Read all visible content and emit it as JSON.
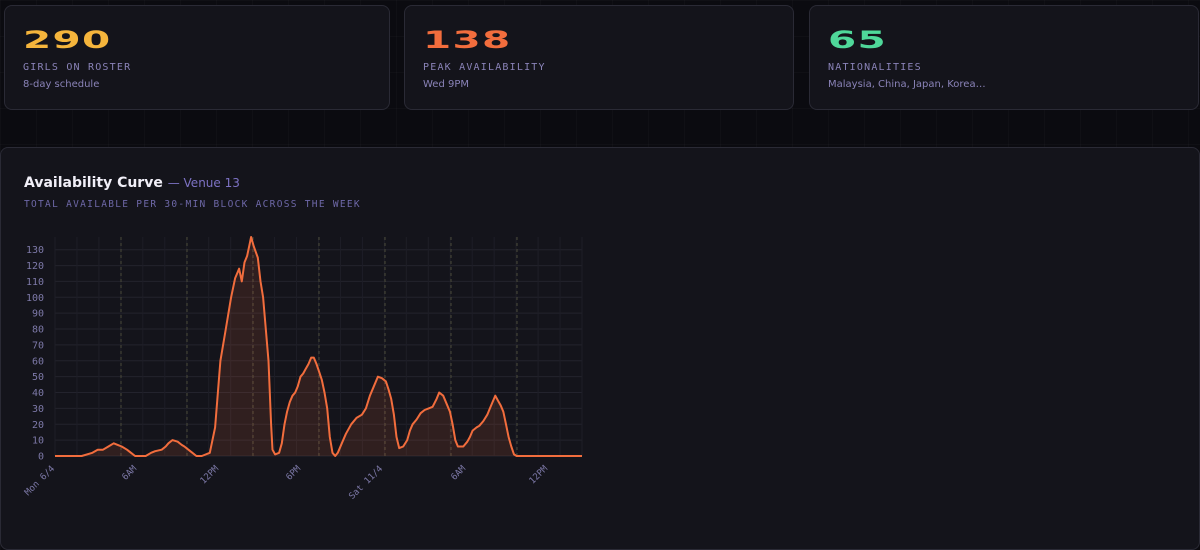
{
  "stats": [
    {
      "value": "290",
      "label": "GIRLS ON ROSTER",
      "sub": "8-day schedule",
      "color": "#f5b53c"
    },
    {
      "value": "138",
      "label": "PEAK AVAILABILITY",
      "sub": "Wed 9PM",
      "color": "#f26d3d"
    },
    {
      "value": "65",
      "label": "NATIONALITIES",
      "sub": "Malaysia, China, Japan, Korea…",
      "color": "#4fd89a"
    }
  ],
  "chart": {
    "title": "Availability Curve",
    "venue": "— Venue 13",
    "subtitle": "TOTAL AVAILABLE PER 30-MIN BLOCK ACROSS THE WEEK"
  },
  "chart_data": {
    "type": "area",
    "ylim": [
      0,
      138
    ],
    "y_ticks": [
      0,
      10,
      20,
      30,
      40,
      50,
      60,
      70,
      80,
      90,
      100,
      110,
      120,
      130
    ],
    "x_tick_labels": [
      "Mon 6/4",
      "6AM",
      "12PM",
      "6PM",
      "Sat 11/4",
      "6AM",
      "12PM"
    ],
    "grid": true,
    "line_color": "#f26d3d",
    "curve_points": [
      [
        0,
        0
      ],
      [
        20,
        0
      ],
      [
        28,
        2
      ],
      [
        32,
        4
      ],
      [
        36,
        4
      ],
      [
        40,
        6
      ],
      [
        44,
        8
      ],
      [
        47,
        7
      ],
      [
        50,
        6
      ],
      [
        54,
        4
      ],
      [
        57,
        2
      ],
      [
        60,
        0
      ],
      [
        68,
        0
      ],
      [
        72,
        2
      ],
      [
        75,
        3
      ],
      [
        80,
        4
      ],
      [
        83,
        6
      ],
      [
        85,
        8
      ],
      [
        88,
        10
      ],
      [
        92,
        9
      ],
      [
        95,
        7
      ],
      [
        97,
        6
      ],
      [
        100,
        4
      ],
      [
        103,
        2
      ],
      [
        106,
        0
      ],
      [
        110,
        0
      ],
      [
        116,
        2
      ],
      [
        120,
        18
      ],
      [
        124,
        60
      ],
      [
        128,
        80
      ],
      [
        132,
        100
      ],
      [
        135,
        112
      ],
      [
        138,
        118
      ],
      [
        140,
        110
      ],
      [
        142,
        122
      ],
      [
        144,
        126
      ],
      [
        146,
        134
      ],
      [
        147,
        138
      ],
      [
        149,
        132
      ],
      [
        152,
        125
      ],
      [
        154,
        110
      ],
      [
        156,
        100
      ],
      [
        158,
        80
      ],
      [
        160,
        60
      ],
      [
        161,
        40
      ],
      [
        162,
        20
      ],
      [
        163,
        4
      ],
      [
        165,
        1
      ],
      [
        168,
        2
      ],
      [
        170,
        8
      ],
      [
        172,
        20
      ],
      [
        174,
        28
      ],
      [
        176,
        34
      ],
      [
        178,
        38
      ],
      [
        180,
        40
      ],
      [
        182,
        44
      ],
      [
        184,
        50
      ],
      [
        186,
        52
      ],
      [
        188,
        55
      ],
      [
        190,
        58
      ],
      [
        192,
        62
      ],
      [
        194,
        62
      ],
      [
        196,
        58
      ],
      [
        198,
        53
      ],
      [
        200,
        48
      ],
      [
        202,
        40
      ],
      [
        204,
        30
      ],
      [
        206,
        12
      ],
      [
        208,
        2
      ],
      [
        210,
        0
      ],
      [
        212,
        2
      ],
      [
        215,
        8
      ],
      [
        218,
        14
      ],
      [
        222,
        20
      ],
      [
        226,
        24
      ],
      [
        230,
        26
      ],
      [
        233,
        30
      ],
      [
        236,
        38
      ],
      [
        239,
        44
      ],
      [
        242,
        50
      ],
      [
        245,
        49
      ],
      [
        248,
        47
      ],
      [
        250,
        42
      ],
      [
        252,
        36
      ],
      [
        254,
        26
      ],
      [
        256,
        12
      ],
      [
        258,
        5
      ],
      [
        261,
        6
      ],
      [
        264,
        10
      ],
      [
        266,
        16
      ],
      [
        268,
        20
      ],
      [
        271,
        23
      ],
      [
        274,
        27
      ],
      [
        277,
        29
      ],
      [
        280,
        30
      ],
      [
        283,
        31
      ],
      [
        286,
        36
      ],
      [
        288,
        40
      ],
      [
        291,
        38
      ],
      [
        294,
        32
      ],
      [
        296,
        28
      ],
      [
        298,
        20
      ],
      [
        300,
        10
      ],
      [
        302,
        6
      ],
      [
        306,
        6
      ],
      [
        309,
        9
      ],
      [
        311,
        12
      ],
      [
        313,
        16
      ],
      [
        316,
        18
      ],
      [
        318,
        19
      ],
      [
        321,
        22
      ],
      [
        324,
        26
      ],
      [
        326,
        30
      ],
      [
        328,
        34
      ],
      [
        330,
        38
      ],
      [
        332,
        35
      ],
      [
        334,
        32
      ],
      [
        336,
        28
      ],
      [
        338,
        20
      ],
      [
        340,
        12
      ],
      [
        342,
        6
      ],
      [
        344,
        1
      ],
      [
        346,
        0
      ],
      [
        395,
        0
      ]
    ],
    "x_domain": [
      0,
      395
    ]
  },
  "colors": {
    "card_bg": "#14141b",
    "border": "#2a2a35",
    "accent": "#f26d3d",
    "muted": "#8a83b8"
  }
}
